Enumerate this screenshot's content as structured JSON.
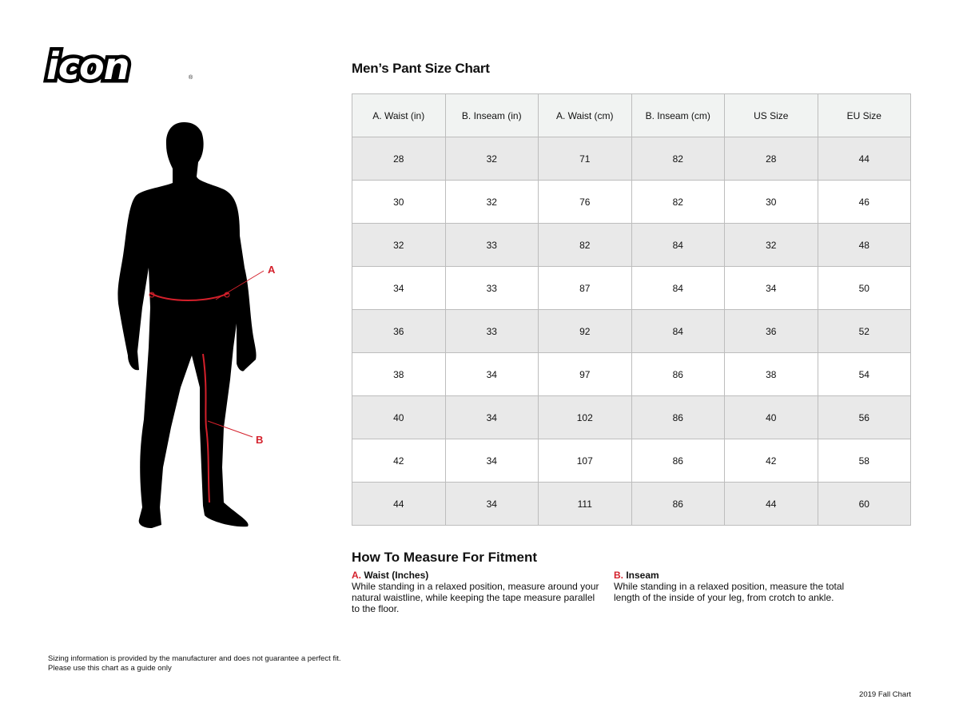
{
  "brand": {
    "logo_text": "icon"
  },
  "chart": {
    "title": "Men’s Pant Size Chart",
    "headers": [
      "A. Waist (in)",
      "B. Inseam (in)",
      "A. Waist (cm)",
      "B. Inseam (cm)",
      "US Size",
      "EU Size"
    ],
    "rows": [
      [
        "28",
        "32",
        "71",
        "82",
        "28",
        "44"
      ],
      [
        "30",
        "32",
        "76",
        "82",
        "30",
        "46"
      ],
      [
        "32",
        "33",
        "82",
        "84",
        "32",
        "48"
      ],
      [
        "34",
        "33",
        "87",
        "84",
        "34",
        "50"
      ],
      [
        "36",
        "33",
        "92",
        "84",
        "36",
        "52"
      ],
      [
        "38",
        "34",
        "97",
        "86",
        "38",
        "54"
      ],
      [
        "40",
        "34",
        "102",
        "86",
        "40",
        "56"
      ],
      [
        "42",
        "34",
        "107",
        "86",
        "42",
        "58"
      ],
      [
        "44",
        "34",
        "111",
        "86",
        "44",
        "60"
      ]
    ]
  },
  "figure": {
    "label_a": "A",
    "label_b": "B",
    "accent_color": "#d4202b"
  },
  "howto": {
    "title": "How To Measure For Fitment",
    "a": {
      "letter": "A.",
      "heading": "Waist (Inches)",
      "text": "While standing in a relaxed position, measure around your natural waistline, while keeping the tape measure parallel to the floor."
    },
    "b": {
      "letter": "B.",
      "heading": "Inseam",
      "text": "While standing in a relaxed position, measure the total length of the inside of your leg, from crotch to ankle."
    }
  },
  "disclaimer": [
    "Sizing information is provided by the manufacturer and does not guarantee a perfect fit.",
    "Please use this chart as a guide only"
  ],
  "footer": "2019 Fall Chart"
}
